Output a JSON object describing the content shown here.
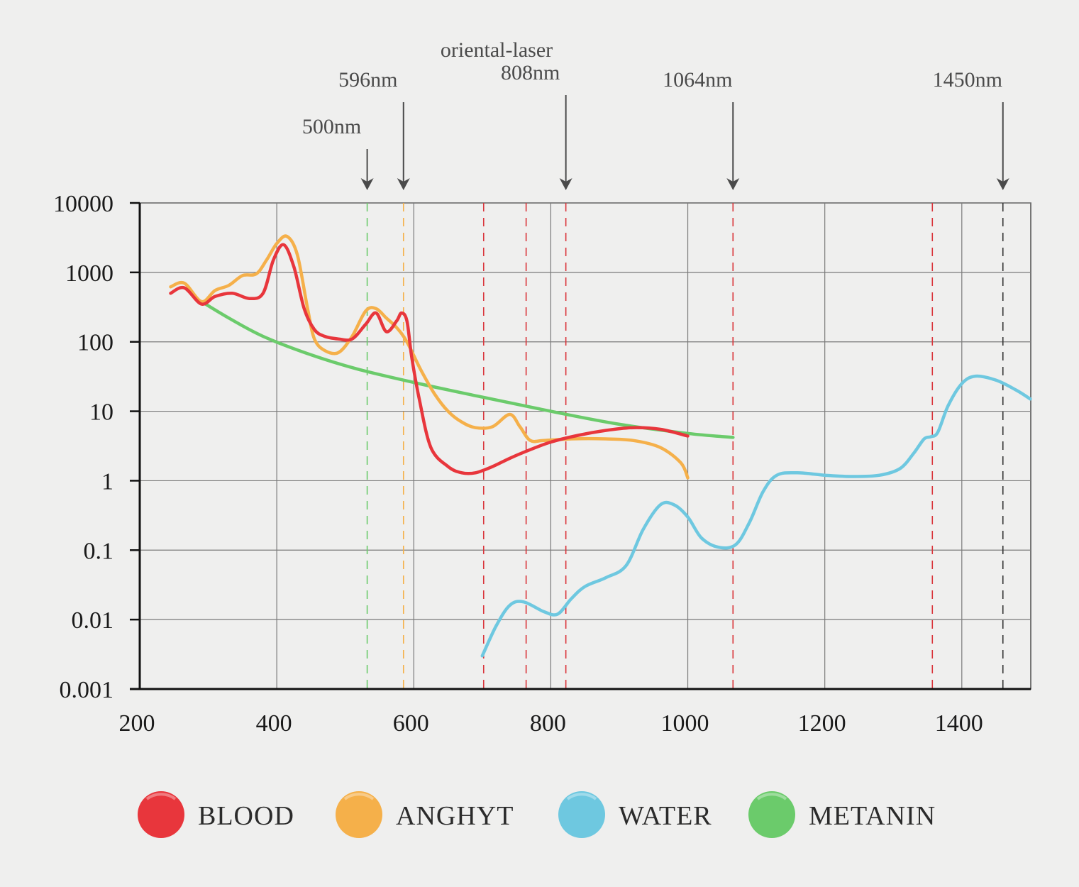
{
  "chart_data": {
    "type": "line",
    "title": "",
    "xlabel": "",
    "ylabel": "",
    "x_scale": "linear",
    "y_scale": "log",
    "xlim": [
      200,
      1500
    ],
    "ylim": [
      0.001,
      10000
    ],
    "x_ticks": [
      "200",
      "400",
      "600",
      "800",
      "1000",
      "1200",
      "1400"
    ],
    "y_ticks": [
      "10000",
      "1000",
      "100",
      "10",
      "1",
      "0.1",
      "0.01",
      "0.001"
    ],
    "grid": true,
    "legend_position": "bottom",
    "header_label": "oriental-laser",
    "annotations": [
      {
        "label": "500nm",
        "x": 532,
        "color": "#6bcb6b",
        "arrow": true
      },
      {
        "label": "596nm",
        "x": 585,
        "color": "#f5b04a",
        "arrow": true
      },
      {
        "label": "808nm",
        "x": 822,
        "color": "#d9343a",
        "arrow": true
      },
      {
        "label": "1064nm",
        "x": 1066,
        "color": "#d9343a",
        "arrow": true
      },
      {
        "label": "1450nm",
        "x": 1460,
        "color": "#333333",
        "arrow": true
      }
    ],
    "guide_lines": [
      {
        "x": 702,
        "color": "#d9343a"
      },
      {
        "x": 764,
        "color": "#d9343a"
      },
      {
        "x": 1357,
        "color": "#d9343a"
      }
    ],
    "series": [
      {
        "name": "BLOOD",
        "color": "#e8363c",
        "x": [
          245,
          265,
          290,
          310,
          335,
          360,
          380,
          395,
          410,
          425,
          440,
          455,
          470,
          490,
          510,
          530,
          545,
          560,
          575,
          582,
          590,
          597,
          608,
          625,
          650,
          670,
          690,
          715,
          740,
          770,
          800,
          840,
          880,
          920,
          960,
          1000
        ],
        "y": [
          500,
          600,
          350,
          450,
          500,
          420,
          500,
          1500,
          2500,
          1200,
          300,
          150,
          120,
          110,
          110,
          180,
          260,
          140,
          200,
          260,
          200,
          60,
          15,
          3,
          1.6,
          1.3,
          1.3,
          1.6,
          2.1,
          2.8,
          3.6,
          4.5,
          5.3,
          5.8,
          5.5,
          4.4
        ]
      },
      {
        "name": "ANGHYT",
        "color": "#f5b04a",
        "x": [
          245,
          265,
          290,
          310,
          330,
          350,
          370,
          385,
          400,
          415,
          430,
          445,
          455,
          470,
          490,
          510,
          530,
          545,
          560,
          575,
          590,
          610,
          630,
          650,
          670,
          690,
          715,
          740,
          755,
          770,
          790,
          830,
          880,
          920,
          960,
          990,
          1000
        ],
        "y": [
          620,
          700,
          380,
          550,
          650,
          900,
          950,
          1500,
          2600,
          3300,
          1800,
          300,
          110,
          75,
          70,
          120,
          280,
          300,
          220,
          160,
          100,
          40,
          18,
          10,
          7,
          5.8,
          6,
          9,
          6,
          3.8,
          3.8,
          4,
          4,
          3.8,
          3,
          1.8,
          1.1
        ]
      },
      {
        "name": "METANIN",
        "color": "#6bcb6b",
        "x": [
          290,
          330,
          380,
          450,
          520,
          600,
          700,
          800,
          900,
          1000,
          1066
        ],
        "y": [
          380,
          220,
          120,
          65,
          40,
          26,
          16,
          10,
          6.5,
          4.8,
          4.2
        ]
      },
      {
        "name": "WATER",
        "color": "#6ec8e0",
        "x": [
          700,
          720,
          740,
          760,
          790,
          810,
          830,
          850,
          880,
          910,
          935,
          960,
          980,
          1000,
          1020,
          1045,
          1070,
          1090,
          1110,
          1130,
          1160,
          1200,
          1240,
          1280,
          1310,
          1330,
          1345,
          1355,
          1365,
          1380,
          1400,
          1420,
          1450,
          1480,
          1500
        ],
        "y": [
          0.003,
          0.008,
          0.016,
          0.018,
          0.013,
          0.012,
          0.02,
          0.03,
          0.04,
          0.06,
          0.2,
          0.45,
          0.45,
          0.3,
          0.15,
          0.11,
          0.12,
          0.25,
          0.7,
          1.2,
          1.3,
          1.2,
          1.15,
          1.2,
          1.5,
          2.5,
          4,
          4.3,
          5,
          12,
          25,
          32,
          28,
          20,
          15
        ]
      }
    ],
    "legend": [
      {
        "label": "BLOOD",
        "color": "#e8363c"
      },
      {
        "label": "ANGHYT",
        "color": "#f5b04a"
      },
      {
        "label": "WATER",
        "color": "#6ec8e0"
      },
      {
        "label": "METANIN",
        "color": "#6bcb6b"
      }
    ]
  }
}
